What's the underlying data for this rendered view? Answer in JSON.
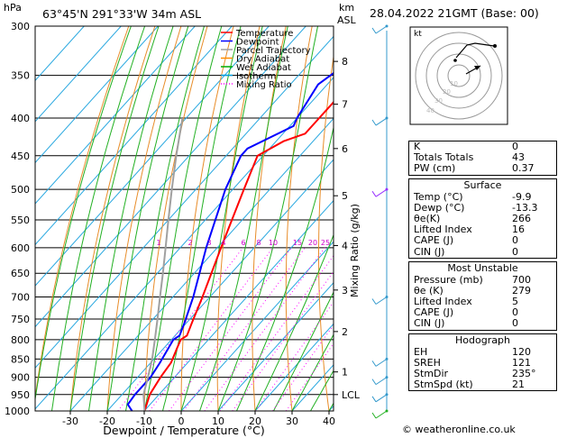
{
  "header": {
    "location": "63°45'N 291°33'W 34m ASL",
    "hpa": "hPa",
    "km": "km",
    "asl": "ASL",
    "datetime": "28.04.2022 21GMT (Base: 00)"
  },
  "legend": [
    {
      "label": "Temperature",
      "color": "#ff0000",
      "style": "solid"
    },
    {
      "label": "Dewpoint",
      "color": "#0000ff",
      "style": "solid"
    },
    {
      "label": "Parcel Trajectory",
      "color": "#a0a0a0",
      "style": "solid"
    },
    {
      "label": "Dry Adiabat",
      "color": "#ff8c00",
      "style": "solid"
    },
    {
      "label": "Wet Adiabat",
      "color": "#00aa00",
      "style": "solid"
    },
    {
      "label": "Isotherm",
      "color": "#00a0e0",
      "style": "solid"
    },
    {
      "label": "Mixing Ratio",
      "color": "#ff00ff",
      "style": "dotted"
    }
  ],
  "chart_data": {
    "type": "line",
    "xlabel": "Dewpoint / Temperature (°C)",
    "ylabel": "Mixing Ratio (g/kg)",
    "x_ticks": [
      -30,
      -20,
      -10,
      0,
      10,
      20,
      30,
      40
    ],
    "xlim": [
      -40,
      40
    ],
    "pressure_levels": [
      300,
      350,
      400,
      450,
      500,
      550,
      600,
      650,
      700,
      750,
      800,
      850,
      900,
      950,
      1000
    ],
    "ylim_hpa": [
      1000,
      300
    ],
    "km_ticks": [
      {
        "label": "8",
        "p": 335
      },
      {
        "label": "7",
        "p": 383
      },
      {
        "label": "6",
        "p": 440
      },
      {
        "label": "5",
        "p": 510
      },
      {
        "label": "4",
        "p": 596
      },
      {
        "label": "3",
        "p": 685
      },
      {
        "label": "2",
        "p": 780
      },
      {
        "label": "1",
        "p": 885
      },
      {
        "label": "LCL",
        "p": 950
      }
    ],
    "mixing_ratio_labels": [
      "1",
      "2",
      "3",
      "4",
      "6",
      "8",
      "10",
      "15",
      "20",
      "25"
    ],
    "mixing_ratio_values": [
      1,
      2,
      3,
      4,
      6,
      8,
      10,
      15,
      20,
      25
    ],
    "series": [
      {
        "name": "Temperature",
        "color": "#ff0000",
        "p": [
          1000,
          950,
          900,
          860,
          820,
          800,
          790,
          760,
          700,
          600,
          500,
          450,
          430,
          420,
          400,
          360,
          330,
          310,
          300
        ],
        "t": [
          -9.9,
          -12.5,
          -13.8,
          -14.5,
          -16.5,
          -17.5,
          -16.8,
          -18.5,
          -22,
          -29,
          -37,
          -41.5,
          -38,
          -34,
          -34,
          -34,
          -27,
          -27,
          -28
        ]
      },
      {
        "name": "Dewpoint",
        "color": "#0000ff",
        "p": [
          1000,
          980,
          950,
          900,
          860,
          800,
          790,
          760,
          700,
          600,
          500,
          450,
          440,
          410,
          400,
          360,
          330,
          300
        ],
        "t": [
          -13.3,
          -16,
          -16.5,
          -16.5,
          -17.5,
          -19.5,
          -18.8,
          -20.5,
          -24.5,
          -33,
          -42,
          -46,
          -46,
          -39,
          -40,
          -42.5,
          -39,
          -37
        ]
      },
      {
        "name": "Parcel Trajectory",
        "color": "#a0a0a0",
        "p": [
          1000,
          950,
          900,
          850,
          800,
          750,
          700,
          650,
          600,
          550,
          500,
          450,
          400
        ],
        "t": [
          -9.9,
          -14.2,
          -17.2,
          -20.5,
          -24.5,
          -28.8,
          -33.5,
          -38.5,
          -44,
          -50,
          -56.5,
          -63.5,
          -71
        ]
      }
    ],
    "hodograph": {
      "label": "kt",
      "ring_labels": [
        "10",
        "20",
        "30",
        "40"
      ]
    }
  },
  "indices": {
    "box1": [
      {
        "label": "K",
        "value": "0"
      },
      {
        "label": "Totals Totals",
        "value": "43"
      },
      {
        "label": "PW (cm)",
        "value": "0.37"
      }
    ],
    "surface": {
      "title": "Surface",
      "rows": [
        {
          "label": "Temp (°C)",
          "value": "-9.9"
        },
        {
          "label": "Dewp (°C)",
          "value": "-13.3"
        },
        {
          "label": "θe(K)",
          "value": "266"
        },
        {
          "label": "Lifted Index",
          "value": "16"
        },
        {
          "label": "CAPE (J)",
          "value": "0"
        },
        {
          "label": "CIN (J)",
          "value": "0"
        }
      ]
    },
    "unstable": {
      "title": "Most Unstable",
      "rows": [
        {
          "label": "Pressure (mb)",
          "value": "700"
        },
        {
          "label": "θe (K)",
          "value": "279"
        },
        {
          "label": "Lifted Index",
          "value": "5"
        },
        {
          "label": "CAPE (J)",
          "value": "0"
        },
        {
          "label": "CIN (J)",
          "value": "0"
        }
      ]
    },
    "hodograph": {
      "title": "Hodograph",
      "rows": [
        {
          "label": "EH",
          "value": "120"
        },
        {
          "label": "SREH",
          "value": "121"
        },
        {
          "label": "StmDir",
          "value": "235°"
        },
        {
          "label": "StmSpd (kt)",
          "value": "21"
        }
      ]
    }
  },
  "credit": "© weatheronline.co.uk"
}
